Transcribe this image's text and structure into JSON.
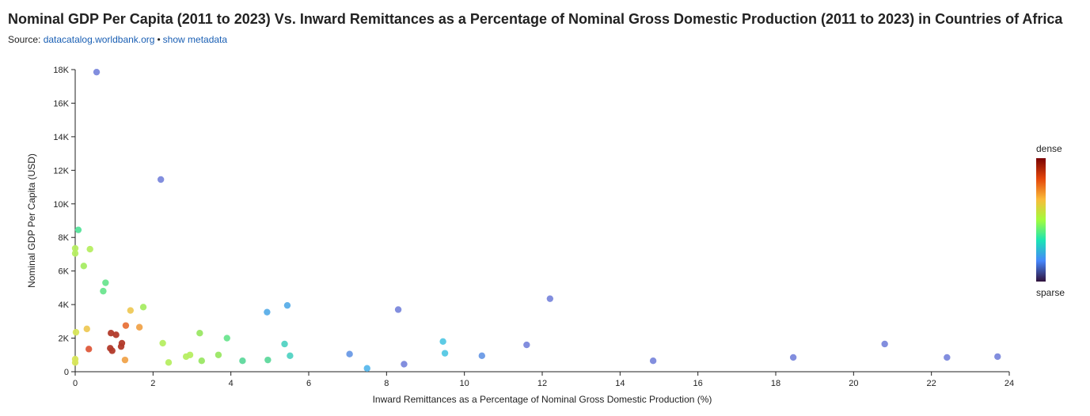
{
  "header": {
    "title": "Nominal GDP Per Capita (2011 to 2023) Vs. Inward Remittances as a Percentage of Nominal Gross Domestic Production (2011 to 2023) in Countries of Africa",
    "source_prefix": "Source:",
    "source_link": "datacatalog.worldbank.org",
    "separator": "•",
    "metadata_link": "show metadata"
  },
  "colors": {
    "link": "#1a5fb4",
    "gradient": [
      "#30123b",
      "#4686fb",
      "#1ae4b6",
      "#a2fc3c",
      "#fabb39",
      "#e4460a",
      "#7a0403"
    ]
  },
  "legend": {
    "top": "dense",
    "bottom": "sparse",
    "placement": "right"
  },
  "chart_data": {
    "type": "scatter",
    "title": "Nominal GDP Per Capita (2011 to 2023) Vs. Inward Remittances as a Percentage of Nominal Gross Domestic Production (2011 to 2023) in Countries of Africa",
    "xlabel": "Inward Remittances as a Percentage of Nominal Gross Domestic Production (%)",
    "ylabel": "Nominal GDP Per Capita (USD)",
    "xlim": [
      0,
      24
    ],
    "ylim": [
      0,
      18000
    ],
    "x_ticks": [
      "0",
      "2",
      "4",
      "6",
      "8",
      "10",
      "12",
      "14",
      "16",
      "18",
      "20",
      "22",
      "24"
    ],
    "y_ticks": [
      "0",
      "2K",
      "4K",
      "6K",
      "8K",
      "10K",
      "12K",
      "14K",
      "16K",
      "18K"
    ],
    "grid": false,
    "points": [
      {
        "x": 0.55,
        "y": 17850,
        "c": "#7b88dc"
      },
      {
        "x": 2.2,
        "y": 11450,
        "c": "#7b88dc"
      },
      {
        "x": 0.08,
        "y": 8450,
        "c": "#55e39a"
      },
      {
        "x": 0.0,
        "y": 7350,
        "c": "#b6ee62"
      },
      {
        "x": 0.0,
        "y": 7050,
        "c": "#b6ee62"
      },
      {
        "x": 0.38,
        "y": 7300,
        "c": "#b6ee62"
      },
      {
        "x": 0.22,
        "y": 6300,
        "c": "#a6ec64"
      },
      {
        "x": 0.78,
        "y": 5300,
        "c": "#6ce58f"
      },
      {
        "x": 0.72,
        "y": 4800,
        "c": "#6ce58f"
      },
      {
        "x": 1.75,
        "y": 3850,
        "c": "#a6ec64"
      },
      {
        "x": 1.42,
        "y": 3650,
        "c": "#eec957"
      },
      {
        "x": 1.3,
        "y": 2750,
        "c": "#e8733a"
      },
      {
        "x": 1.65,
        "y": 2650,
        "c": "#f0a34b"
      },
      {
        "x": 0.3,
        "y": 2550,
        "c": "#eec957"
      },
      {
        "x": 0.02,
        "y": 2350,
        "c": "#d8e65a"
      },
      {
        "x": 0.92,
        "y": 2300,
        "c": "#b23a2a"
      },
      {
        "x": 1.05,
        "y": 2200,
        "c": "#b23a2a"
      },
      {
        "x": 1.2,
        "y": 1700,
        "c": "#b23a2a"
      },
      {
        "x": 1.18,
        "y": 1500,
        "c": "#b23a2a"
      },
      {
        "x": 0.9,
        "y": 1400,
        "c": "#b23a2a"
      },
      {
        "x": 0.95,
        "y": 1250,
        "c": "#b23a2a"
      },
      {
        "x": 0.35,
        "y": 1350,
        "c": "#de5a3b"
      },
      {
        "x": 1.28,
        "y": 700,
        "c": "#f0a34b"
      },
      {
        "x": 0.0,
        "y": 750,
        "c": "#d8e65a"
      },
      {
        "x": 0.0,
        "y": 550,
        "c": "#d8e65a"
      },
      {
        "x": 2.25,
        "y": 1700,
        "c": "#b6ee62"
      },
      {
        "x": 2.4,
        "y": 550,
        "c": "#b6ee62"
      },
      {
        "x": 2.85,
        "y": 900,
        "c": "#b6ee62"
      },
      {
        "x": 2.95,
        "y": 1000,
        "c": "#b6ee62"
      },
      {
        "x": 3.2,
        "y": 2300,
        "c": "#9ae764"
      },
      {
        "x": 3.25,
        "y": 650,
        "c": "#9ae764"
      },
      {
        "x": 3.68,
        "y": 1000,
        "c": "#9ae764"
      },
      {
        "x": 3.9,
        "y": 2000,
        "c": "#6ce58f"
      },
      {
        "x": 4.3,
        "y": 650,
        "c": "#5ed89c"
      },
      {
        "x": 4.95,
        "y": 700,
        "c": "#5ed89c"
      },
      {
        "x": 5.38,
        "y": 1650,
        "c": "#52d3c3"
      },
      {
        "x": 5.52,
        "y": 950,
        "c": "#52d3c3"
      },
      {
        "x": 4.93,
        "y": 3550,
        "c": "#5aaee8"
      },
      {
        "x": 5.45,
        "y": 3950,
        "c": "#5aaee8"
      },
      {
        "x": 7.05,
        "y": 1050,
        "c": "#6a9ae6"
      },
      {
        "x": 7.5,
        "y": 200,
        "c": "#5ab8ec"
      },
      {
        "x": 8.3,
        "y": 3700,
        "c": "#7b88dc"
      },
      {
        "x": 8.45,
        "y": 450,
        "c": "#7b88dc"
      },
      {
        "x": 9.45,
        "y": 1800,
        "c": "#54c8e4"
      },
      {
        "x": 9.5,
        "y": 1100,
        "c": "#54c8e4"
      },
      {
        "x": 10.45,
        "y": 950,
        "c": "#6a9ae6"
      },
      {
        "x": 11.6,
        "y": 1600,
        "c": "#7b88dc"
      },
      {
        "x": 12.2,
        "y": 4350,
        "c": "#7b88dc"
      },
      {
        "x": 14.85,
        "y": 650,
        "c": "#7b88dc"
      },
      {
        "x": 18.45,
        "y": 850,
        "c": "#7b88dc"
      },
      {
        "x": 20.8,
        "y": 1650,
        "c": "#7b88dc"
      },
      {
        "x": 22.4,
        "y": 850,
        "c": "#7b88dc"
      },
      {
        "x": 23.7,
        "y": 900,
        "c": "#7b88dc"
      }
    ]
  }
}
